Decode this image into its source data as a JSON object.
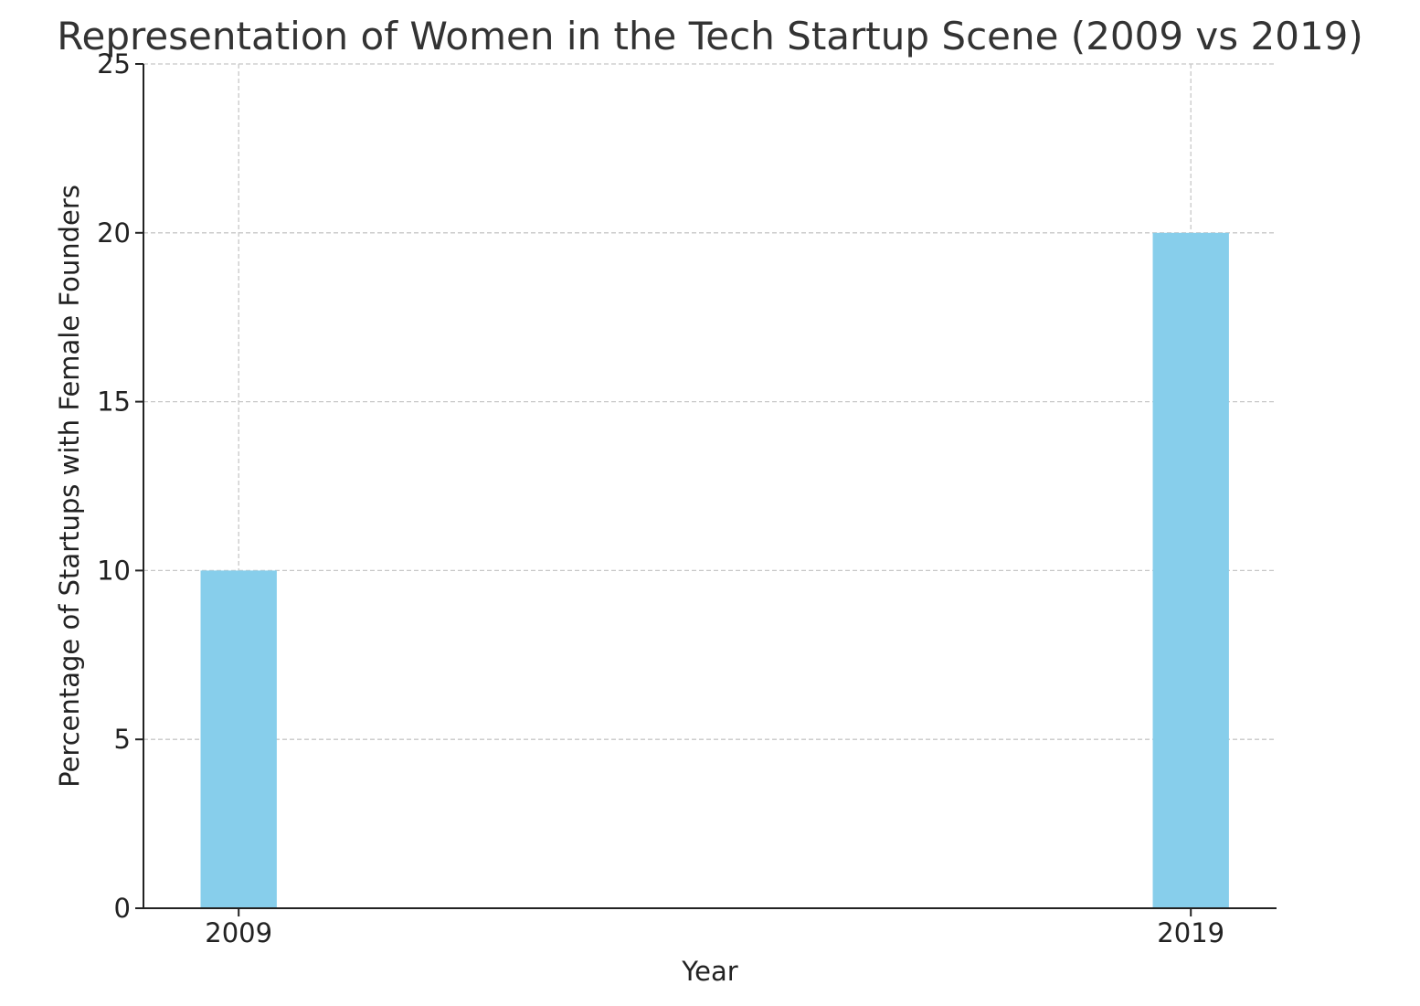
{
  "chart_data": {
    "type": "bar",
    "title": "Representation of Women in the Tech Startup Scene (2009 vs 2019)",
    "xlabel": "Year",
    "ylabel": "Percentage of Startups with Female Founders",
    "x": [
      2009,
      2019
    ],
    "categories": [
      "2009",
      "2019"
    ],
    "values": [
      10,
      20
    ],
    "xlim": [
      2008.0,
      2019.9
    ],
    "ylim": [
      0,
      25
    ],
    "yticks": [
      0,
      5,
      10,
      15,
      20,
      25
    ],
    "ytick_labels": [
      "0",
      "5",
      "10",
      "15",
      "20",
      "25"
    ],
    "bar_width": 0.8,
    "bar_color": "#87CEEB",
    "grid": true,
    "legend": null
  }
}
